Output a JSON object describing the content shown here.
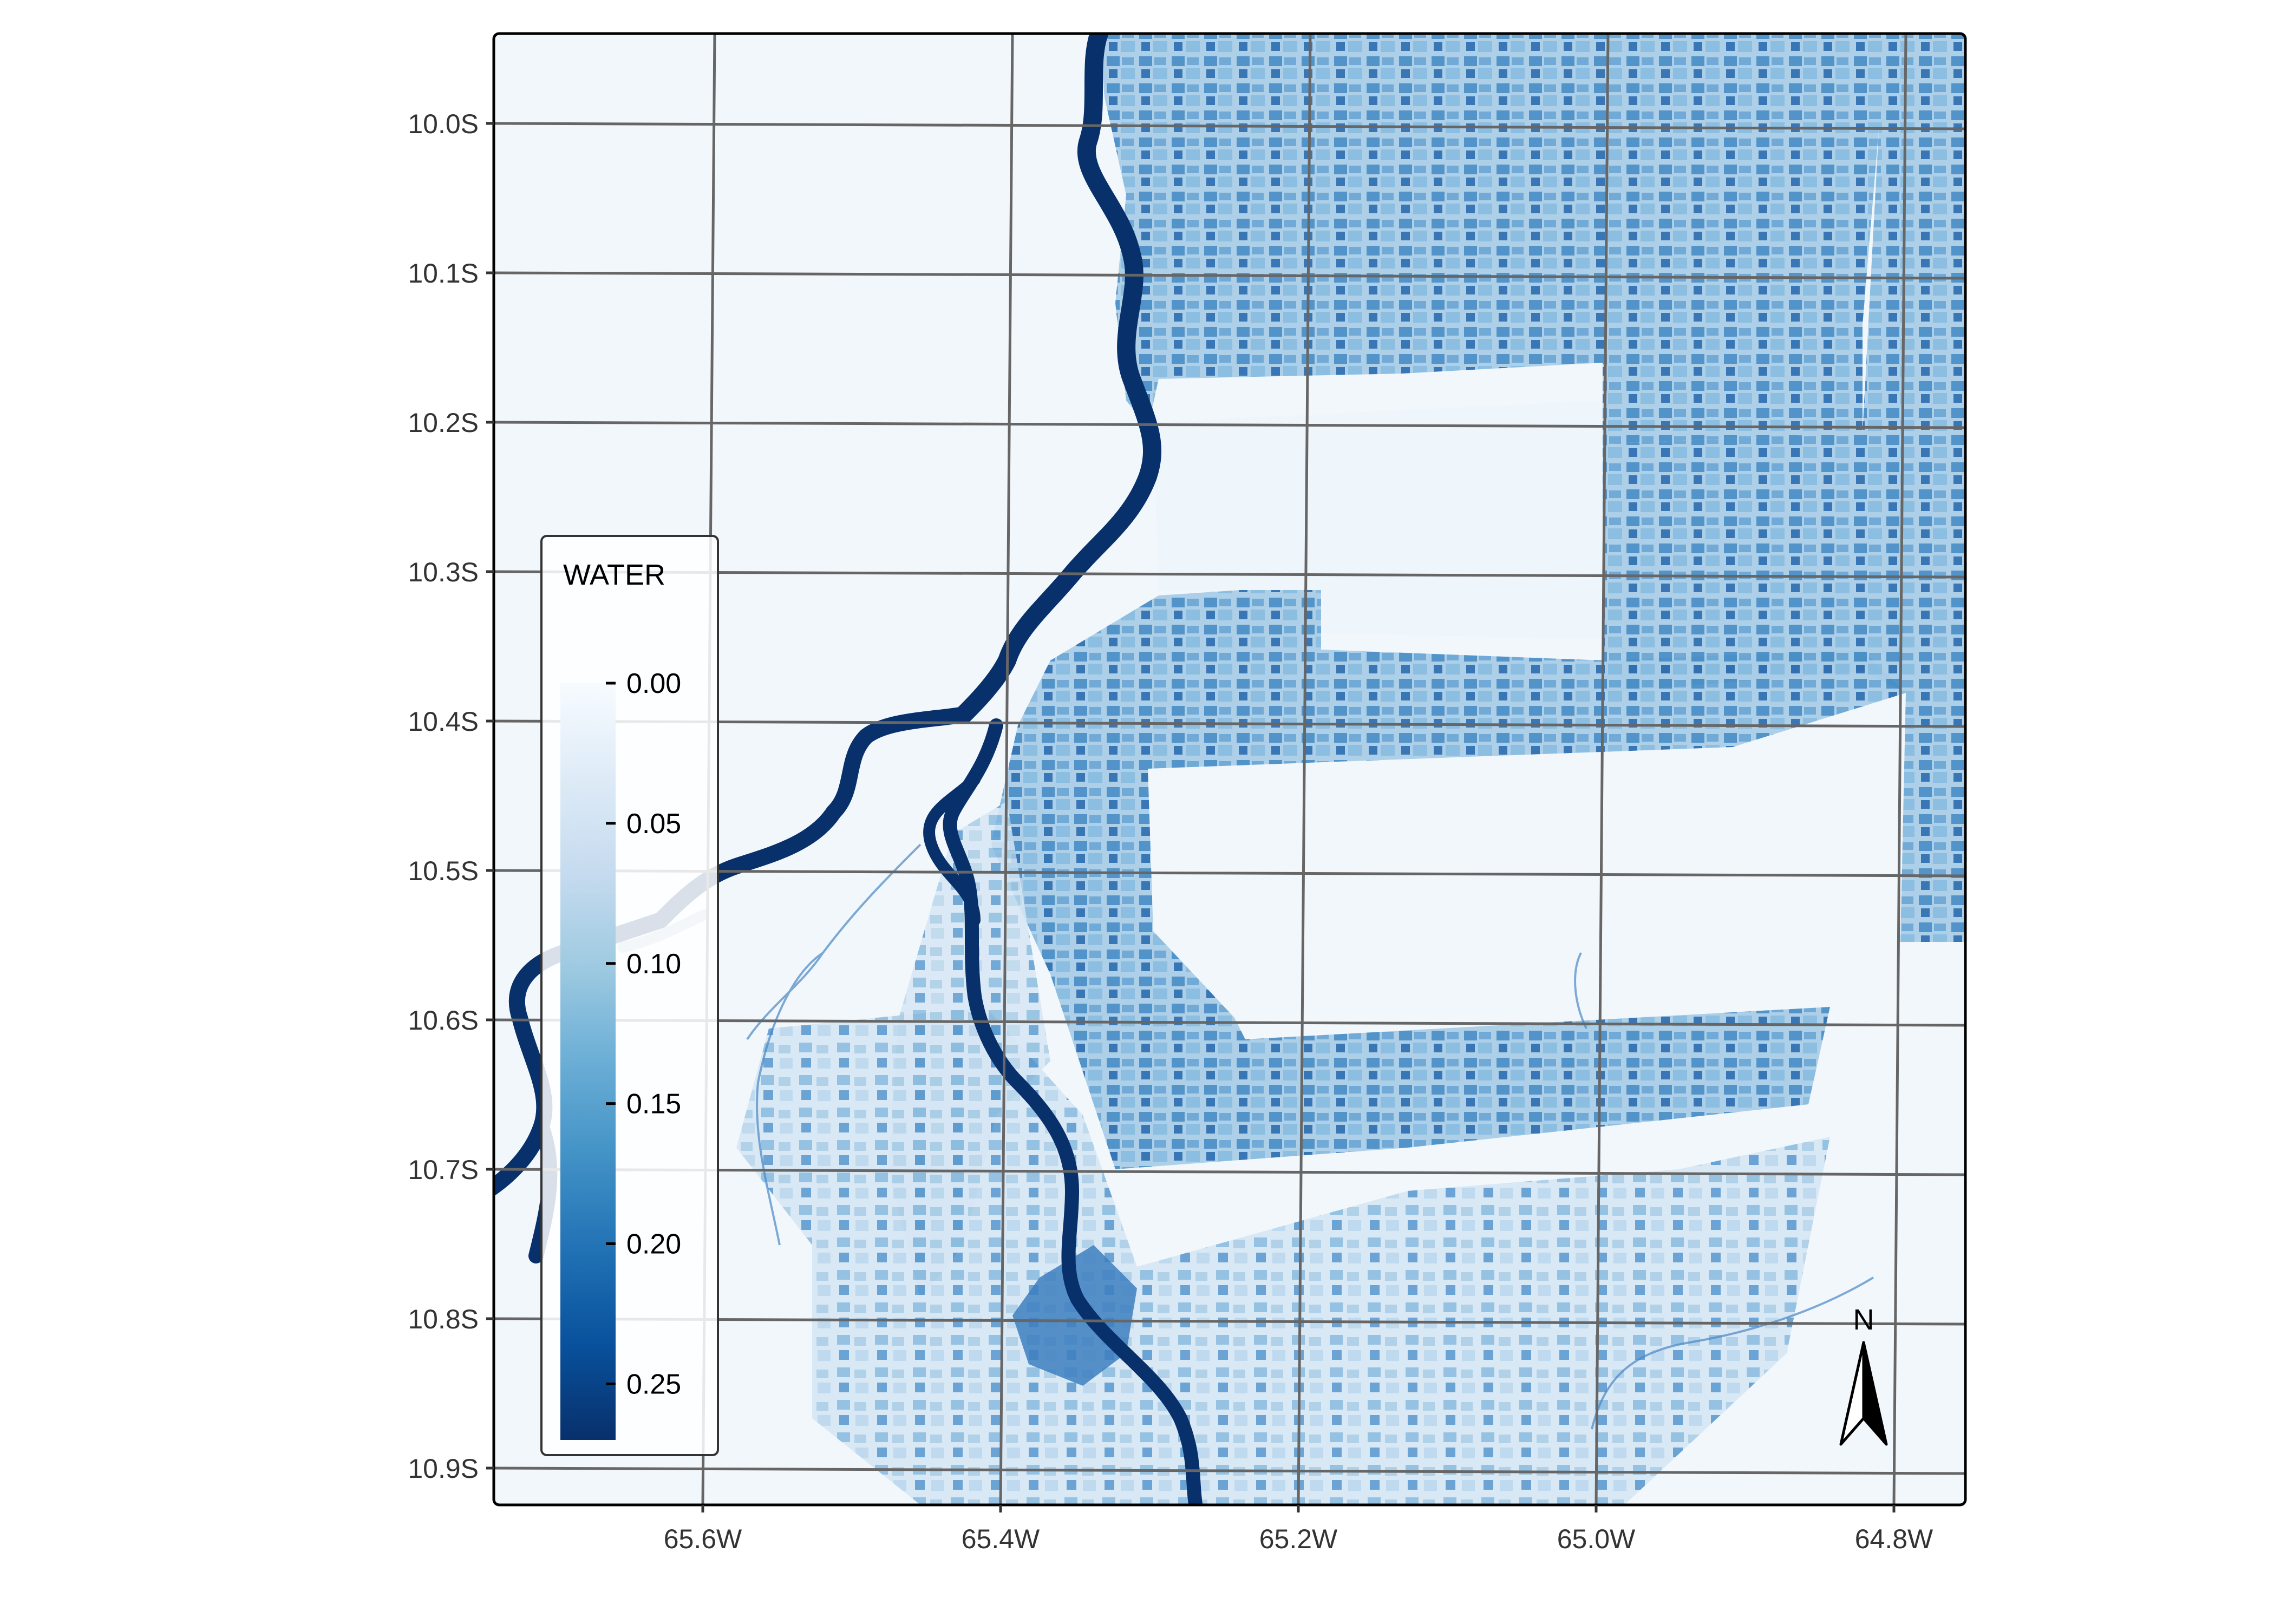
{
  "map": {
    "variable": "WATER",
    "lat_ticks": [
      "10.0S",
      "10.1S",
      "10.2S",
      "10.3S",
      "10.4S",
      "10.5S",
      "10.6S",
      "10.7S",
      "10.8S",
      "10.9S"
    ],
    "lon_ticks": [
      "65.6W",
      "65.4W",
      "65.2W",
      "65.0W",
      "64.8W"
    ],
    "legend": {
      "title": "WATER",
      "labels": [
        "0.00",
        "0.05",
        "0.10",
        "0.15",
        "0.20",
        "0.25"
      ],
      "min": 0.0,
      "max": 0.27,
      "colors": [
        "#f7fbff",
        "#deebf7",
        "#c6dbef",
        "#9ecae1",
        "#6baed6",
        "#4292c6",
        "#2171b5",
        "#08519c",
        "#08306b"
      ]
    },
    "north_arrow": {
      "label": "N"
    },
    "colors": {
      "water": "#08306b",
      "background": "#f2f7fc",
      "grid": "#666666",
      "frame": "#000000",
      "field_light": "#9ecae1",
      "field_mid": "#4a90c8",
      "field_dark": "#1f5fa8"
    }
  }
}
